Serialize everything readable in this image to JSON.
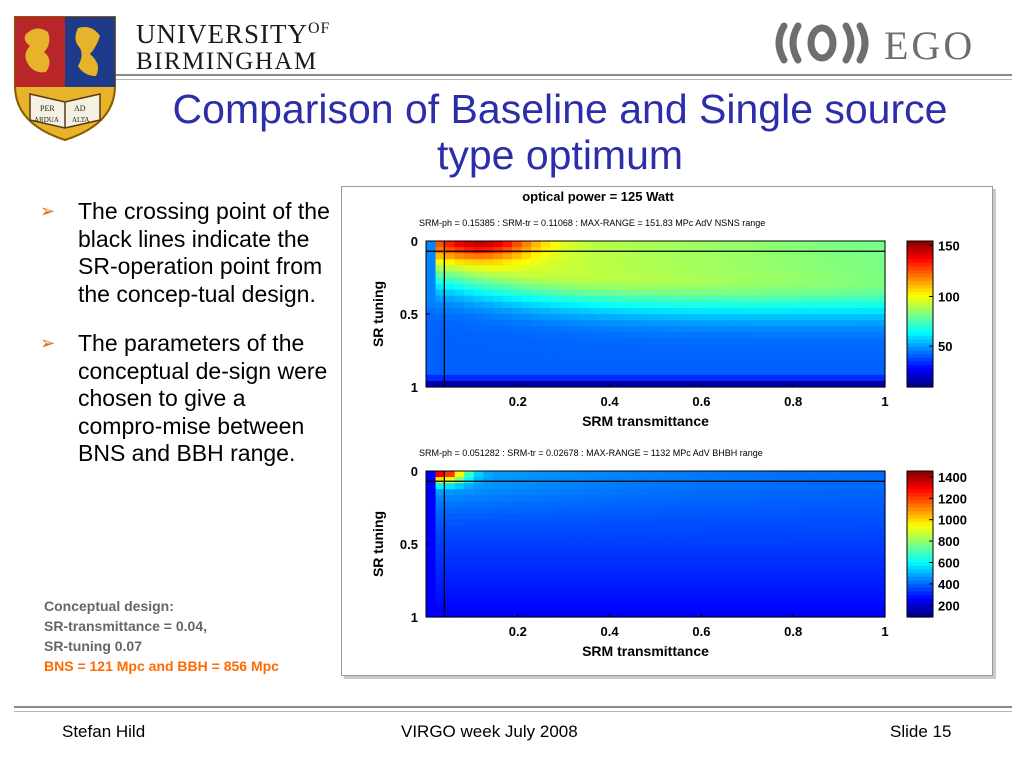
{
  "header": {
    "university_line1": "UNIVERSITY",
    "university_of": "OF",
    "university_line2": "BIRMINGHAM",
    "crest_motto_1": "PER",
    "crest_motto_2": "AD",
    "crest_motto_3": "ARDUA",
    "crest_motto_4": "ALTA",
    "ego_label": "EGO"
  },
  "slide": {
    "title": "Comparison of Baseline and Single source type optimum",
    "bullets": [
      "The crossing point of the black lines indicate the SR-operation point from the concep-tual design.",
      "The parameters of the conceptual de-sign were chosen to give a compro-mise between BNS and BBH range."
    ],
    "design_lines": [
      "Conceptual design:",
      "SR-transmittance = 0.04,",
      "SR-tuning 0.07"
    ],
    "design_highlight": "BNS = 121 Mpc and BBH = 856 Mpc"
  },
  "footer": {
    "left": "Stefan Hild",
    "center": "VIRGO week July 2008",
    "right": "Slide 15"
  },
  "colors": {
    "title": "#2b2ea8",
    "bullet_arrow": "#e06a10",
    "design_note": "#666666",
    "highlight": "#ff6a00",
    "rule": "#7a7a7a"
  },
  "chart_data": [
    {
      "type": "heatmap",
      "title": "optical power =    125 Watt",
      "subtitle": "SRM-ph  = 0.15385 : SRM-tr = 0.11068 : MAX-RANGE =      151.83 MPc        AdV NSNS range",
      "xlabel": "SRM transmittance",
      "ylabel": "SR tuning",
      "xticks": [
        "0.2",
        "0.4",
        "0.6",
        "0.8",
        "1"
      ],
      "yticks": [
        "0",
        "0.5",
        "1"
      ],
      "colorbar_ticks": [
        "150",
        "100",
        "50"
      ],
      "crosshair": {
        "x": 0.04,
        "y": 0.07
      },
      "colormap": "jet"
    },
    {
      "type": "heatmap",
      "title": "",
      "subtitle": "SRM-ph  = 0.051282 : SRM-tr = 0.02678 : MAX-RANGE =        1132 MPc        AdV BHBH range",
      "xlabel": "SRM transmittance",
      "ylabel": "SR tuning",
      "xticks": [
        "0.2",
        "0.4",
        "0.6",
        "0.8",
        "1"
      ],
      "yticks": [
        "0",
        "0.5",
        "1"
      ],
      "colorbar_ticks": [
        "1400",
        "1200",
        "1000",
        "800",
        "600",
        "400",
        "200"
      ],
      "crosshair": {
        "x": 0.04,
        "y": 0.07
      },
      "colormap": "jet"
    }
  ]
}
